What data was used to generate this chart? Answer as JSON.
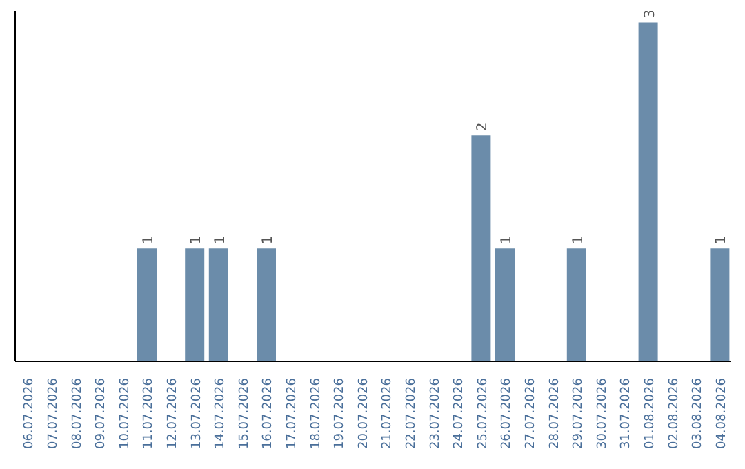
{
  "chart_data": {
    "type": "bar",
    "categories": [
      "06.07.2026",
      "07.07.2026",
      "08.07.2026",
      "09.07.2026",
      "10.07.2026",
      "11.07.2026",
      "12.07.2026",
      "13.07.2026",
      "14.07.2026",
      "15.07.2026",
      "16.07.2026",
      "17.07.2026",
      "18.07.2026",
      "19.07.2026",
      "20.07.2026",
      "21.07.2026",
      "22.07.2026",
      "23.07.2026",
      "24.07.2026",
      "25.07.2026",
      "26.07.2026",
      "27.07.2026",
      "28.07.2026",
      "29.07.2026",
      "30.07.2026",
      "31.07.2026",
      "01.08.2026",
      "02.08.2026",
      "03.08.2026",
      "04.08.2026"
    ],
    "values": [
      0,
      0,
      0,
      0,
      0,
      1,
      0,
      1,
      1,
      0,
      1,
      0,
      0,
      0,
      0,
      0,
      0,
      0,
      0,
      2,
      1,
      0,
      0,
      1,
      0,
      0,
      3,
      0,
      0,
      1
    ],
    "value_labels": [
      null,
      null,
      null,
      null,
      null,
      "1",
      null,
      "1",
      "1",
      null,
      "1",
      null,
      null,
      null,
      null,
      null,
      null,
      null,
      null,
      "2",
      "1",
      null,
      null,
      "1",
      null,
      null,
      "3",
      null,
      null,
      "1"
    ],
    "color": "#6b8caa",
    "ylim": [
      0,
      3.1
    ],
    "tick_labels": "x",
    "grid": false,
    "legend": false
  }
}
